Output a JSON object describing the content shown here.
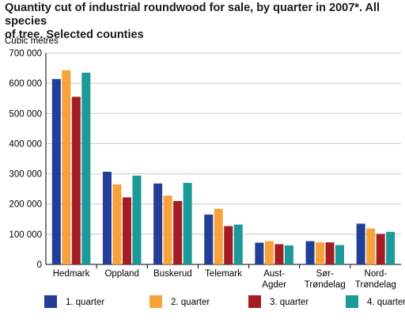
{
  "chart_data": {
    "type": "bar",
    "title_lines": [
      "Quantity cut of industrial roundwood for sale, by quarter in 2007*. All species",
      "of tree. Selected counties"
    ],
    "ylabel": "Cubic metres",
    "ylim": [
      0,
      700000
    ],
    "yticks": [
      "0",
      "100 000",
      "200 000",
      "300 000",
      "400 000",
      "500 000",
      "600 000",
      "700 000"
    ],
    "categories": [
      [
        "Hedmark"
      ],
      [
        "Oppland"
      ],
      [
        "Buskerud"
      ],
      [
        "Telemark"
      ],
      [
        "Aust-",
        "Agder"
      ],
      [
        "Sør-",
        "Trøndelag"
      ],
      [
        "Nord-",
        "Trøndelag"
      ]
    ],
    "series": [
      {
        "name": "1. quarter",
        "color": "#233e96",
        "values": [
          614000,
          307000,
          268000,
          165000,
          72000,
          77000,
          135000
        ]
      },
      {
        "name": "2. quarter",
        "color": "#f7a23b",
        "values": [
          643000,
          265000,
          228000,
          184000,
          77000,
          73000,
          119000
        ]
      },
      {
        "name": "3. quarter",
        "color": "#a31d23",
        "values": [
          555000,
          222000,
          210000,
          127000,
          67000,
          73000,
          101000
        ]
      },
      {
        "name": "4. quarter",
        "color": "#1c9a9a",
        "values": [
          635000,
          294000,
          270000,
          132000,
          63000,
          64000,
          108000
        ]
      }
    ],
    "grid": true,
    "legend": "bottom"
  }
}
